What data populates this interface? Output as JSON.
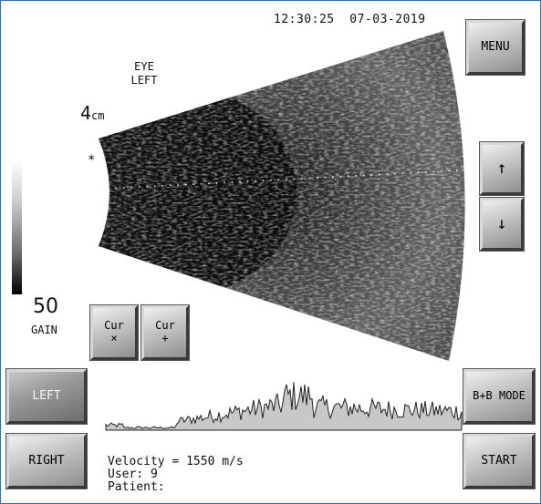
{
  "header": {
    "time": "12:30:25",
    "date": "07-03-2019"
  },
  "scan": {
    "eye_line1": "EYE",
    "eye_line2": "LEFT",
    "depth_value": "4",
    "depth_unit": "cm",
    "marker": "*"
  },
  "gain": {
    "value": "50",
    "label": "GAIN"
  },
  "buttons": {
    "menu": "MENU",
    "up": "↑",
    "down": "↓",
    "cur_x": "Cur\n×",
    "cur_plus": "Cur\n+",
    "left": "LEFT",
    "right": "RIGHT",
    "bb_mode": "B+B MODE",
    "start": "START"
  },
  "info": {
    "velocity": "Velocity = 1550 m/s",
    "user": "User: 9",
    "patient": "Patient:"
  },
  "colors": {
    "frame_border": "#3a6ea5",
    "waveform_fill": "#c8c8c8",
    "waveform_stroke": "#222222"
  }
}
